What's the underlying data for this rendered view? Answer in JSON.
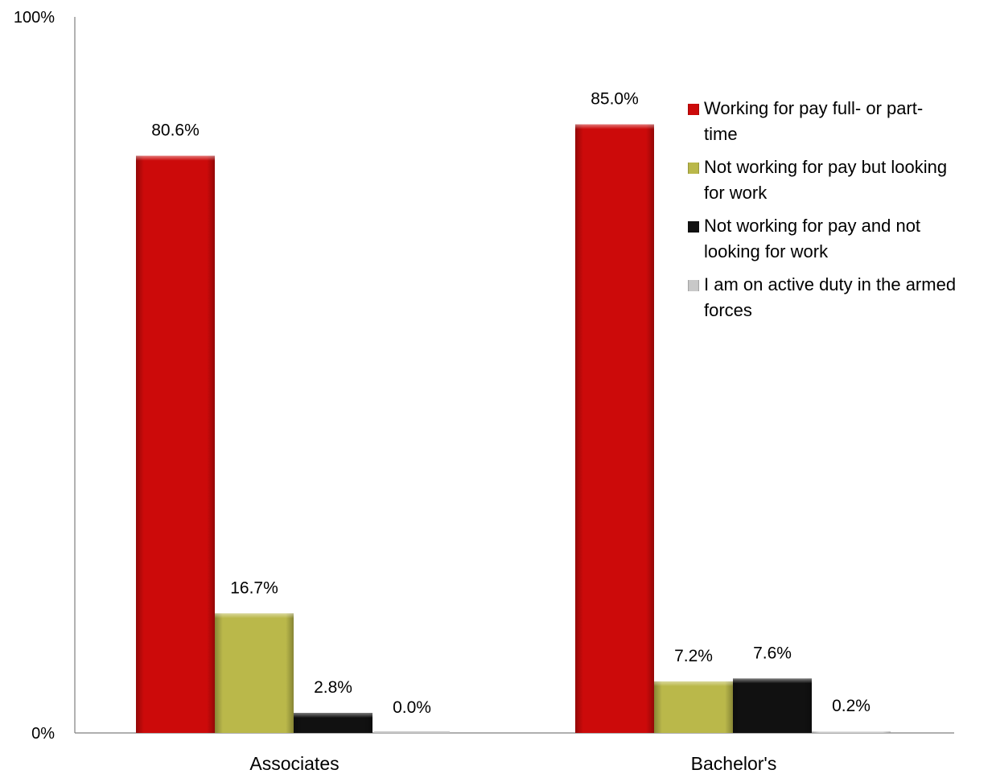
{
  "chart_data": {
    "type": "bar",
    "categories": [
      "Associates",
      "Bachelor's"
    ],
    "ylim": [
      0,
      100
    ],
    "y_tick_labels": [
      "0%",
      "100%"
    ],
    "grid": false,
    "legend_position": "right",
    "series": [
      {
        "name": "Working for pay full- or part-time",
        "legend_lines": [
          "Working for pay full- or part-",
          "time"
        ],
        "color": "#CC0A0A",
        "values": [
          80.6,
          85.0
        ],
        "labels": [
          "80.6%",
          "85.0%"
        ]
      },
      {
        "name": "Not working for pay but looking for work",
        "legend_lines": [
          "Not working for pay but looking",
          "for work"
        ],
        "color": "#BAB84A",
        "values": [
          16.7,
          7.2
        ],
        "labels": [
          "16.7%",
          "7.2%"
        ]
      },
      {
        "name": "Not working for pay and not looking for work",
        "legend_lines": [
          "Not working for pay and not",
          "looking for work"
        ],
        "color": "#111111",
        "values": [
          2.8,
          7.6
        ],
        "labels": [
          "2.8%",
          "7.6%"
        ]
      },
      {
        "name": "I am on active duty in the armed forces",
        "legend_lines": [
          "I am on active duty in the armed",
          "forces"
        ],
        "color": "#C8C8C8",
        "values": [
          0.0,
          0.2
        ],
        "labels": [
          "0.0%",
          "0.2%"
        ]
      }
    ]
  }
}
